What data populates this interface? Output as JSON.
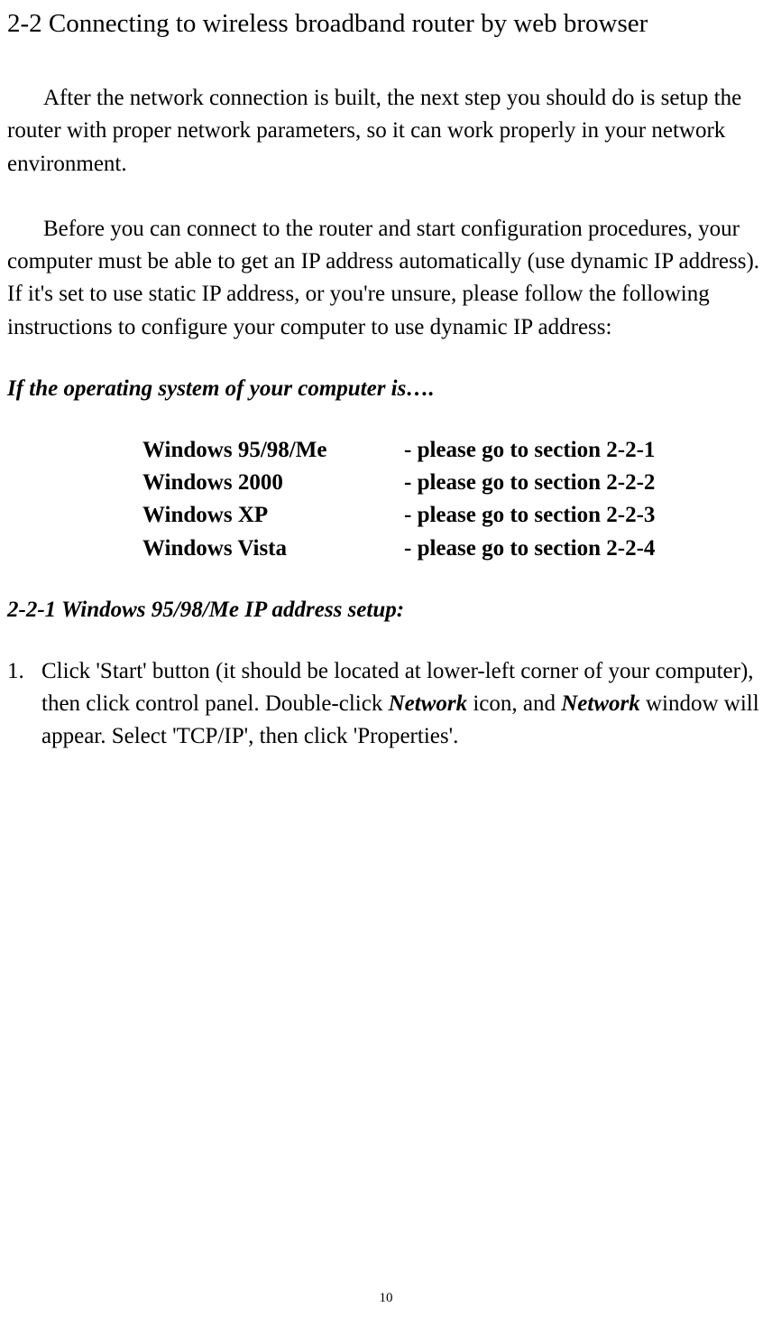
{
  "pageTitle": "2-2 Connecting to wireless broadband router by web browser",
  "paragraph1": "After the network connection is built, the next step you should do is setup the router with proper network parameters, so it can work properly in your network environment.",
  "paragraph2": "Before you can connect to the router and start configuration procedures, your computer must be able to get an IP address automatically (use dynamic IP address). If it's set to use static IP address, or you're unsure, please follow the following instructions to configure your computer to use dynamic IP address:",
  "osIntro": "If the operating system of your computer is….",
  "osTable": [
    {
      "os": "Windows 95/98/Me",
      "section": "- please go to section 2-2-1"
    },
    {
      "os": "Windows 2000",
      "section": "- please go to section 2-2-2"
    },
    {
      "os": "Windows XP",
      "section": "- please go to section 2-2-3"
    },
    {
      "os": "Windows Vista",
      "section": "- please go to section 2-2-4"
    }
  ],
  "sectionHeading": "2-2-1 Windows 95/98/Me IP address setup:",
  "step1": {
    "number": "1.",
    "part1": "Click 'Start' button (it should be located at lower-left corner of your computer), then click control panel. Double-click ",
    "part2": "Network",
    "part3": " icon, and ",
    "part4": "Network",
    "part5": " window will appear. Select 'TCP/IP', then click 'Properties'."
  },
  "pageNumber": "10",
  "colors": {
    "background": "#ffffff",
    "text": "#000000"
  },
  "typography": {
    "titleFontSize": 29,
    "bodyFontSize": 25,
    "pageNumberFontSize": 15,
    "fontFamily": "Times New Roman"
  }
}
